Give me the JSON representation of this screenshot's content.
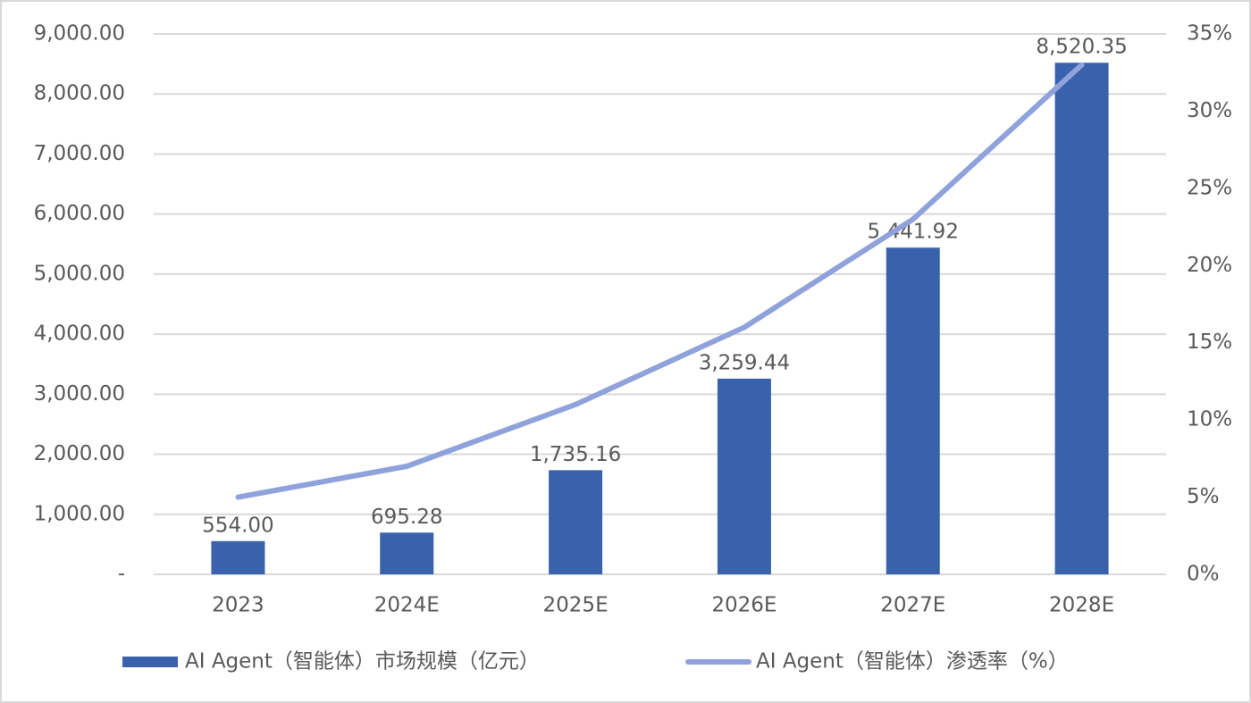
{
  "chart_data": {
    "type": "bar-line",
    "categories": [
      "2023",
      "2024E",
      "2025E",
      "2026E",
      "2027E",
      "2028E"
    ],
    "series": [
      {
        "name": "AI Agent（智能体）市场规模（亿元）",
        "type": "bar",
        "color": "#3a62ac",
        "values": [
          554.0,
          695.28,
          1735.16,
          3259.44,
          5441.92,
          8520.35
        ],
        "value_labels": [
          "554.00",
          "695.28",
          "1,735.16",
          "3,259.44",
          "5,441.92",
          "8,520.35"
        ]
      },
      {
        "name": "AI Agent（智能体）渗透率（%）",
        "type": "line",
        "axis": "y2",
        "color": "#8fa2db",
        "values": [
          5,
          7,
          11,
          16,
          23,
          33
        ]
      }
    ],
    "ylim": [
      0,
      9000
    ],
    "yticks": [
      {
        "value": 0,
        "label": "-"
      },
      {
        "value": 1000,
        "label": "1,000.00"
      },
      {
        "value": 2000,
        "label": "2,000.00"
      },
      {
        "value": 3000,
        "label": "3,000.00"
      },
      {
        "value": 4000,
        "label": "4,000.00"
      },
      {
        "value": 5000,
        "label": "5,000.00"
      },
      {
        "value": 6000,
        "label": "6,000.00"
      },
      {
        "value": 7000,
        "label": "7,000.00"
      },
      {
        "value": 8000,
        "label": "8,000.00"
      },
      {
        "value": 9000,
        "label": "9,000.00"
      }
    ],
    "y2lim": [
      0,
      35
    ],
    "y2ticks": [
      {
        "value": 0,
        "label": "0%"
      },
      {
        "value": 5,
        "label": "5%"
      },
      {
        "value": 10,
        "label": "10%"
      },
      {
        "value": 15,
        "label": "15%"
      },
      {
        "value": 20,
        "label": "20%"
      },
      {
        "value": 25,
        "label": "25%"
      },
      {
        "value": 30,
        "label": "30%"
      },
      {
        "value": 35,
        "label": "35%"
      }
    ],
    "grid": true,
    "legend": "bottom"
  }
}
